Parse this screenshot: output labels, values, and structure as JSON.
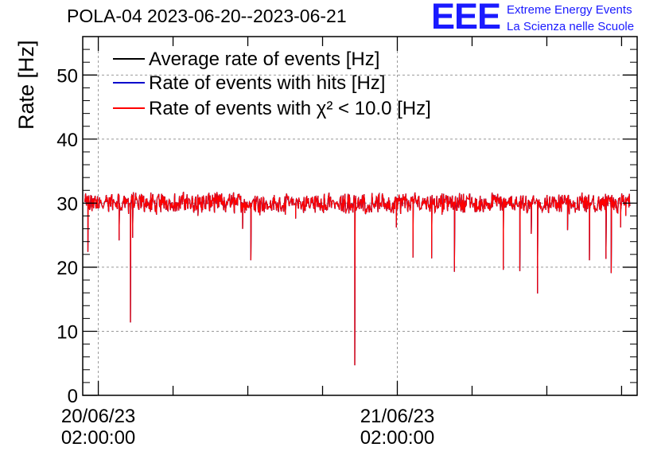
{
  "title": "POLA-04 2023-06-20--2023-06-21",
  "logo": {
    "letters": "EEE",
    "line1": "Extreme Energy Events",
    "line2": "La Scienza nelle Scuole"
  },
  "colors": {
    "series_average": "#000000",
    "series_hits": "#0000cc",
    "series_chi2": "#ff0000",
    "logo": "#1a1aff",
    "grid": "#999999"
  },
  "chart_data": {
    "type": "line",
    "ylabel": "Rate [Hz]",
    "xlabel": "",
    "ylim": [
      0,
      56
    ],
    "yticks": [
      0,
      10,
      20,
      30,
      40,
      50
    ],
    "xlim": [
      "2023-06-20 00:45",
      "2023-06-21 21:15"
    ],
    "xticks": [
      {
        "at": "2023-06-20 02:00",
        "date": "20/06/23",
        "time": "02:00:00"
      },
      {
        "at": "2023-06-21 02:00",
        "date": "21/06/23",
        "time": "02:00:00"
      }
    ],
    "grid": true,
    "legend_position": "top-left",
    "series": [
      {
        "name": "Average rate of events [Hz]",
        "color": "#000000",
        "mean": 30.0,
        "start": "2023-06-20 00:55",
        "end": "2023-06-21 20:40"
      },
      {
        "name": "Rate of events with hits [Hz]",
        "color": "#0000cc",
        "mean": 30.0,
        "start": "2023-06-20 00:55",
        "end": "2023-06-21 20:40"
      },
      {
        "name": "Rate of events with χ² < 10.0 [Hz]",
        "color": "#ff0000",
        "mean": 30.0,
        "start": "2023-06-20 00:55",
        "end": "2023-06-21 20:40"
      }
    ],
    "dips": [
      {
        "time": "2023-06-20 01:10",
        "value": 22.4
      },
      {
        "time": "2023-06-20 03:40",
        "value": 24.2
      },
      {
        "time": "2023-06-20 04:35",
        "value": 11.4
      },
      {
        "time": "2023-06-20 04:45",
        "value": 24.6
      },
      {
        "time": "2023-06-20 06:40",
        "value": 28.2
      },
      {
        "time": "2023-06-20 10:00",
        "value": 28.0
      },
      {
        "time": "2023-06-20 13:35",
        "value": 26.0
      },
      {
        "time": "2023-06-20 14:15",
        "value": 21.1
      },
      {
        "time": "2023-06-20 17:50",
        "value": 27.6
      },
      {
        "time": "2023-06-20 22:35",
        "value": 4.7
      },
      {
        "time": "2023-06-21 01:55",
        "value": 26.2
      },
      {
        "time": "2023-06-21 03:15",
        "value": 21.5
      },
      {
        "time": "2023-06-21 04:45",
        "value": 21.4
      },
      {
        "time": "2023-06-21 05:35",
        "value": 28.2
      },
      {
        "time": "2023-06-21 06:35",
        "value": 19.3
      },
      {
        "time": "2023-06-21 10:30",
        "value": 19.6
      },
      {
        "time": "2023-06-21 11:50",
        "value": 19.4
      },
      {
        "time": "2023-06-21 12:45",
        "value": 25.2
      },
      {
        "time": "2023-06-21 13:15",
        "value": 15.9
      },
      {
        "time": "2023-06-21 15:40",
        "value": 25.8
      },
      {
        "time": "2023-06-21 17:25",
        "value": 21.1
      },
      {
        "time": "2023-06-21 18:45",
        "value": 21.3
      },
      {
        "time": "2023-06-21 19:10",
        "value": 19.1
      },
      {
        "time": "2023-06-21 19:55",
        "value": 26.2
      },
      {
        "time": "2023-06-21 20:20",
        "value": 28.0
      }
    ]
  }
}
